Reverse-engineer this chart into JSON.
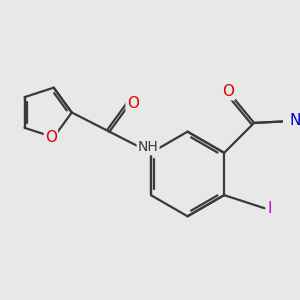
{
  "background_color": "#e8e8e8",
  "bond_color": "#3a3a3a",
  "atom_colors": {
    "O": "#dd0000",
    "NH": "#3a3a3a",
    "N_pyrr": "#0000cc",
    "I": "#cc00cc"
  },
  "line_width": 1.6,
  "dbo": 0.018
}
